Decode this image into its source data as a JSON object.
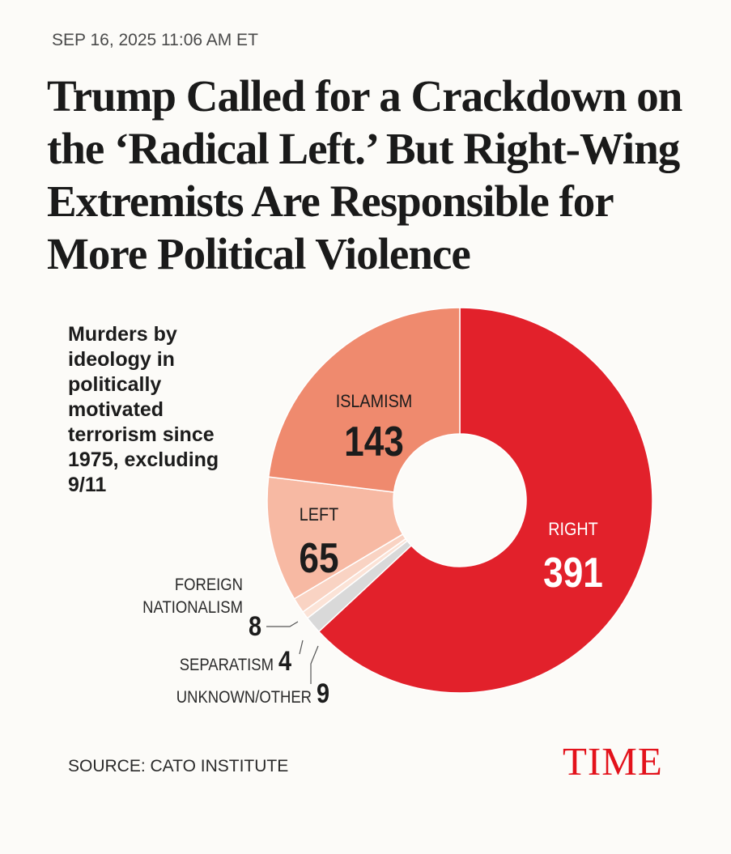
{
  "header": {
    "dateline": "SEP 16, 2025 11:06 AM ET",
    "headline": "Trump Called for a Crackdown on the ‘Radical Left.’ But Right-Wing Extremists Are Responsible for More Political Violence"
  },
  "footer": {
    "source": "SOURCE: CATO INSTITUTE",
    "logo": "TIME"
  },
  "colors": {
    "right": "#e2212b",
    "islamism": "#ef8a6e",
    "left": "#f7b9a3",
    "foreign_nationalism": "#f9d3c3",
    "separatism": "#fbe3d7",
    "unknown_other": "#d9d9d9",
    "logo": "#e3121b"
  },
  "chart_data": {
    "type": "pie",
    "variant": "donut",
    "title": "Murders by ideology in politically motivated terrorism since 1975, excluding 9/11",
    "categories": [
      "RIGHT",
      "UNKNOWN/OTHER",
      "SEPARATISM",
      "FOREIGN NATIONALISM",
      "LEFT",
      "ISLAMISM"
    ],
    "values": [
      391,
      9,
      4,
      8,
      65,
      143
    ],
    "label_words": {
      "RIGHT": [
        "RIGHT"
      ],
      "UNKNOWN/OTHER": [
        "UNKNOWN/OTHER"
      ],
      "SEPARATISM": [
        "SEPARATISM"
      ],
      "FOREIGN NATIONALISM": [
        "FOREIGN",
        "NATIONALISM"
      ],
      "LEFT": [
        "LEFT"
      ],
      "ISLAMISM": [
        "ISLAMISM"
      ]
    },
    "color_keys": [
      "right",
      "unknown_other",
      "separatism",
      "foreign_nationalism",
      "left",
      "islamism"
    ],
    "start_angle_deg": 0,
    "direction": "clockwise",
    "source": "SOURCE: CATO INSTITUTE"
  }
}
